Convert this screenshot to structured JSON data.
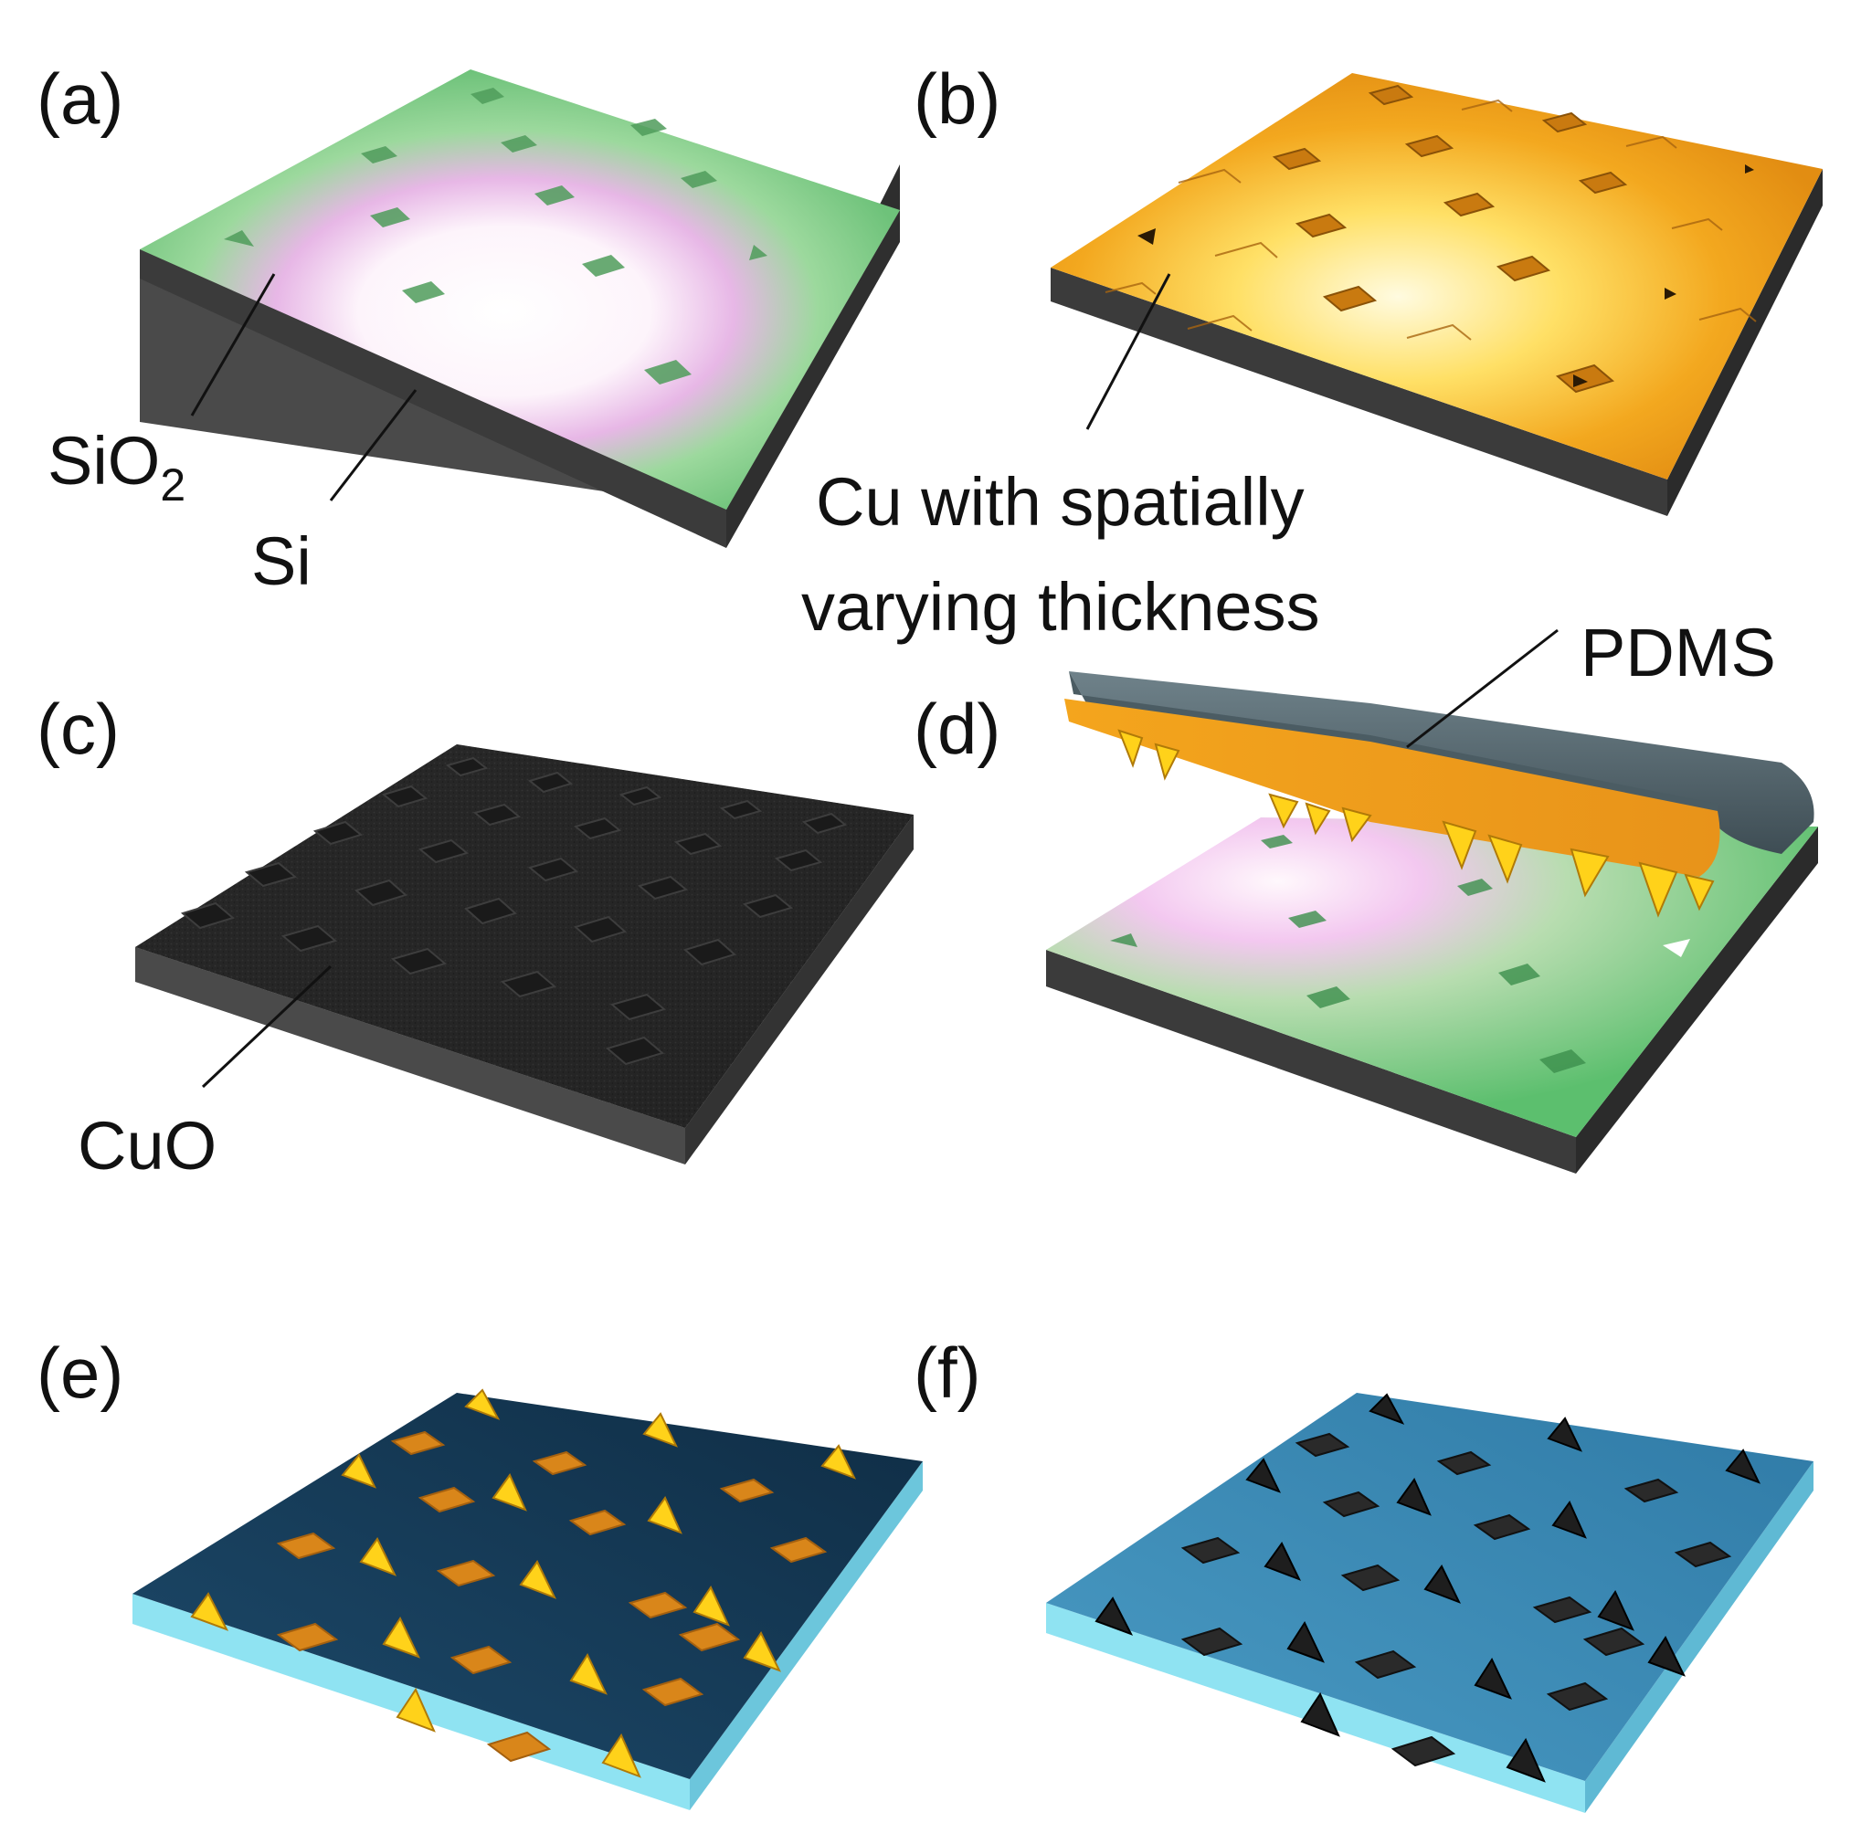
{
  "panels": {
    "a": {
      "label": "(a)",
      "callouts": [
        {
          "text": "SiO",
          "subscript": "2"
        },
        {
          "text": "Si"
        }
      ]
    },
    "b": {
      "label": "(b)",
      "callouts": [
        {
          "line1": "Cu with spatially",
          "line2": "varying thickness"
        }
      ]
    },
    "c": {
      "label": "(c)",
      "callouts": [
        {
          "text": "CuO"
        }
      ]
    },
    "d": {
      "label": "(d)",
      "callouts": [
        {
          "text": "PDMS"
        }
      ]
    },
    "e": {
      "label": "(e)"
    },
    "f": {
      "label": "(f)"
    }
  },
  "colors": {
    "sio2_surface": "#7fcf86",
    "si_side": "#3c3c3c",
    "cu_surface": "#f0a11c",
    "cuo_surface": "#2c2c2c",
    "pdms": "#5a6b72",
    "substrate_blue": "#1d4f73",
    "substrate_edge": "#8fe3f2",
    "pyramid_gold": "#ffd21a",
    "pad_orange": "#d9861a"
  }
}
